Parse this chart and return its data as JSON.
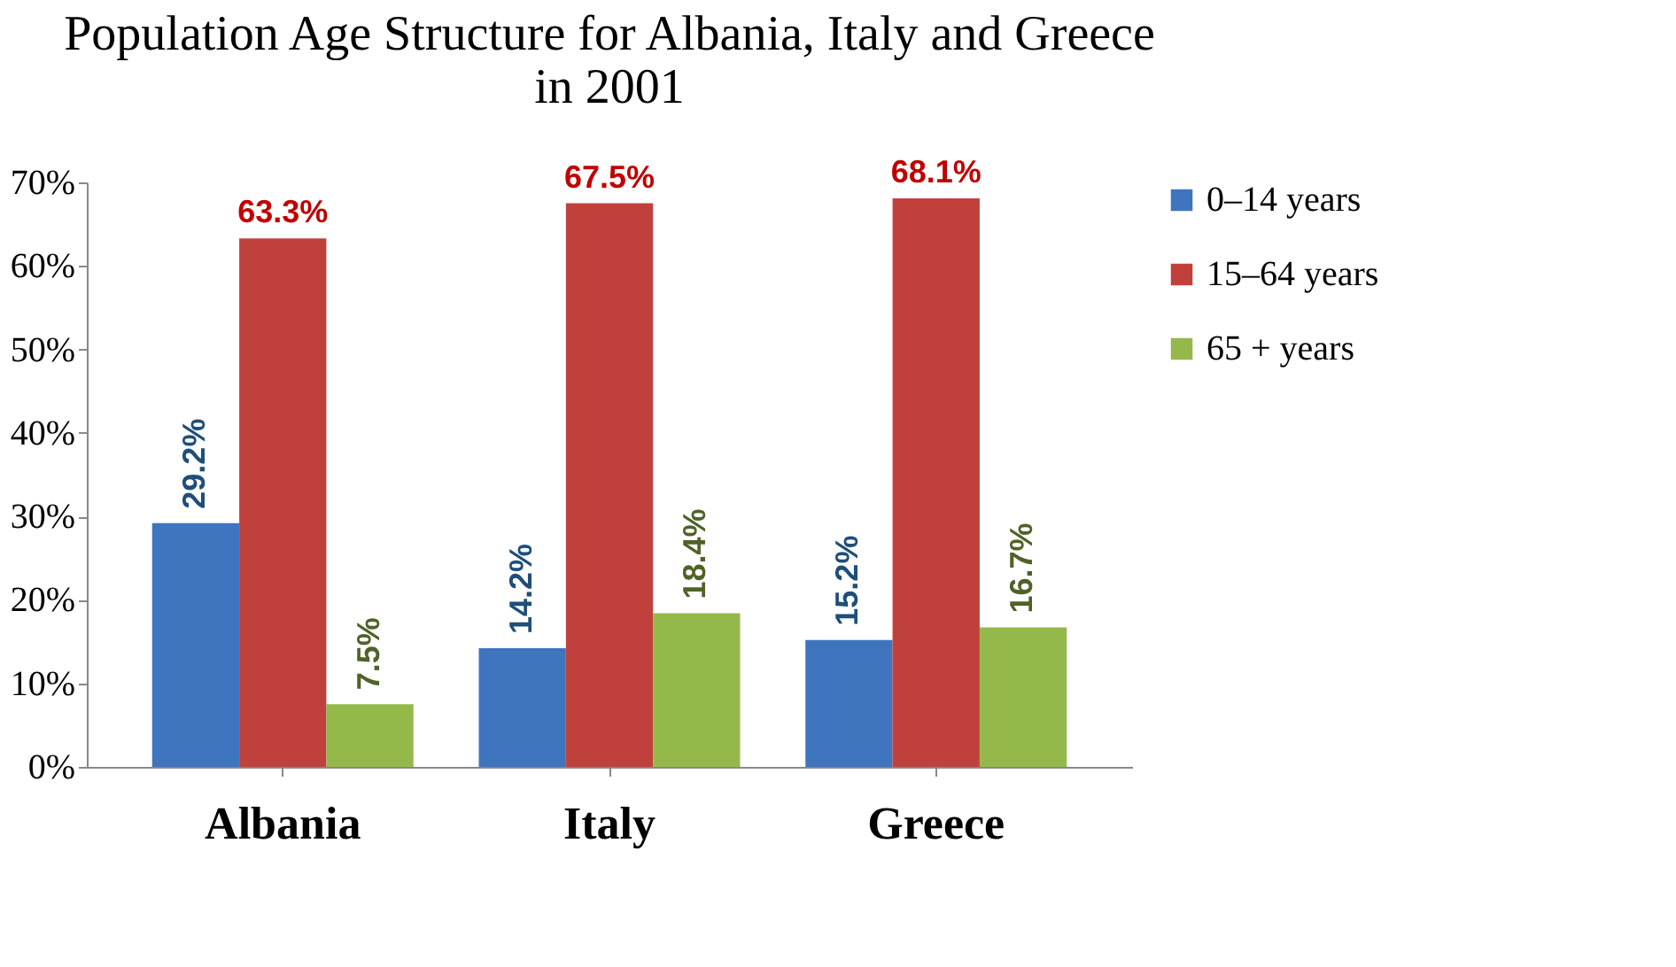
{
  "chart_data": {
    "type": "bar",
    "title": "Population Age Structure for Albania, Italy and Greece in 2001",
    "categories": [
      "Albania",
      "Italy",
      "Greece"
    ],
    "series": [
      {
        "name": "0–14 years",
        "color": "#3f74be",
        "values": [
          29.2,
          14.2,
          15.2
        ],
        "value_labels": [
          "29.2%",
          "14.2%",
          "15.2%"
        ]
      },
      {
        "name": "15–64 years",
        "color": "#c0413c",
        "values": [
          63.3,
          67.5,
          68.1
        ],
        "value_labels": [
          "63.3%",
          "67.5%",
          "68.1%"
        ]
      },
      {
        "name": "65 +  years",
        "color": "#94b94a",
        "values": [
          7.5,
          18.4,
          16.7
        ],
        "value_labels": [
          "7.5%",
          "18.4%",
          "16.7%"
        ]
      }
    ],
    "ylim": [
      0,
      70
    ],
    "yticks": [
      {
        "value": 0,
        "label": "0%"
      },
      {
        "value": 10,
        "label": "10%"
      },
      {
        "value": 20,
        "label": "20%"
      },
      {
        "value": 30,
        "label": "30%"
      },
      {
        "value": 40,
        "label": "40%"
      },
      {
        "value": 50,
        "label": "50%"
      },
      {
        "value": 60,
        "label": "60%"
      },
      {
        "value": 70,
        "label": "70%"
      }
    ],
    "grid": false,
    "legend": "right"
  }
}
